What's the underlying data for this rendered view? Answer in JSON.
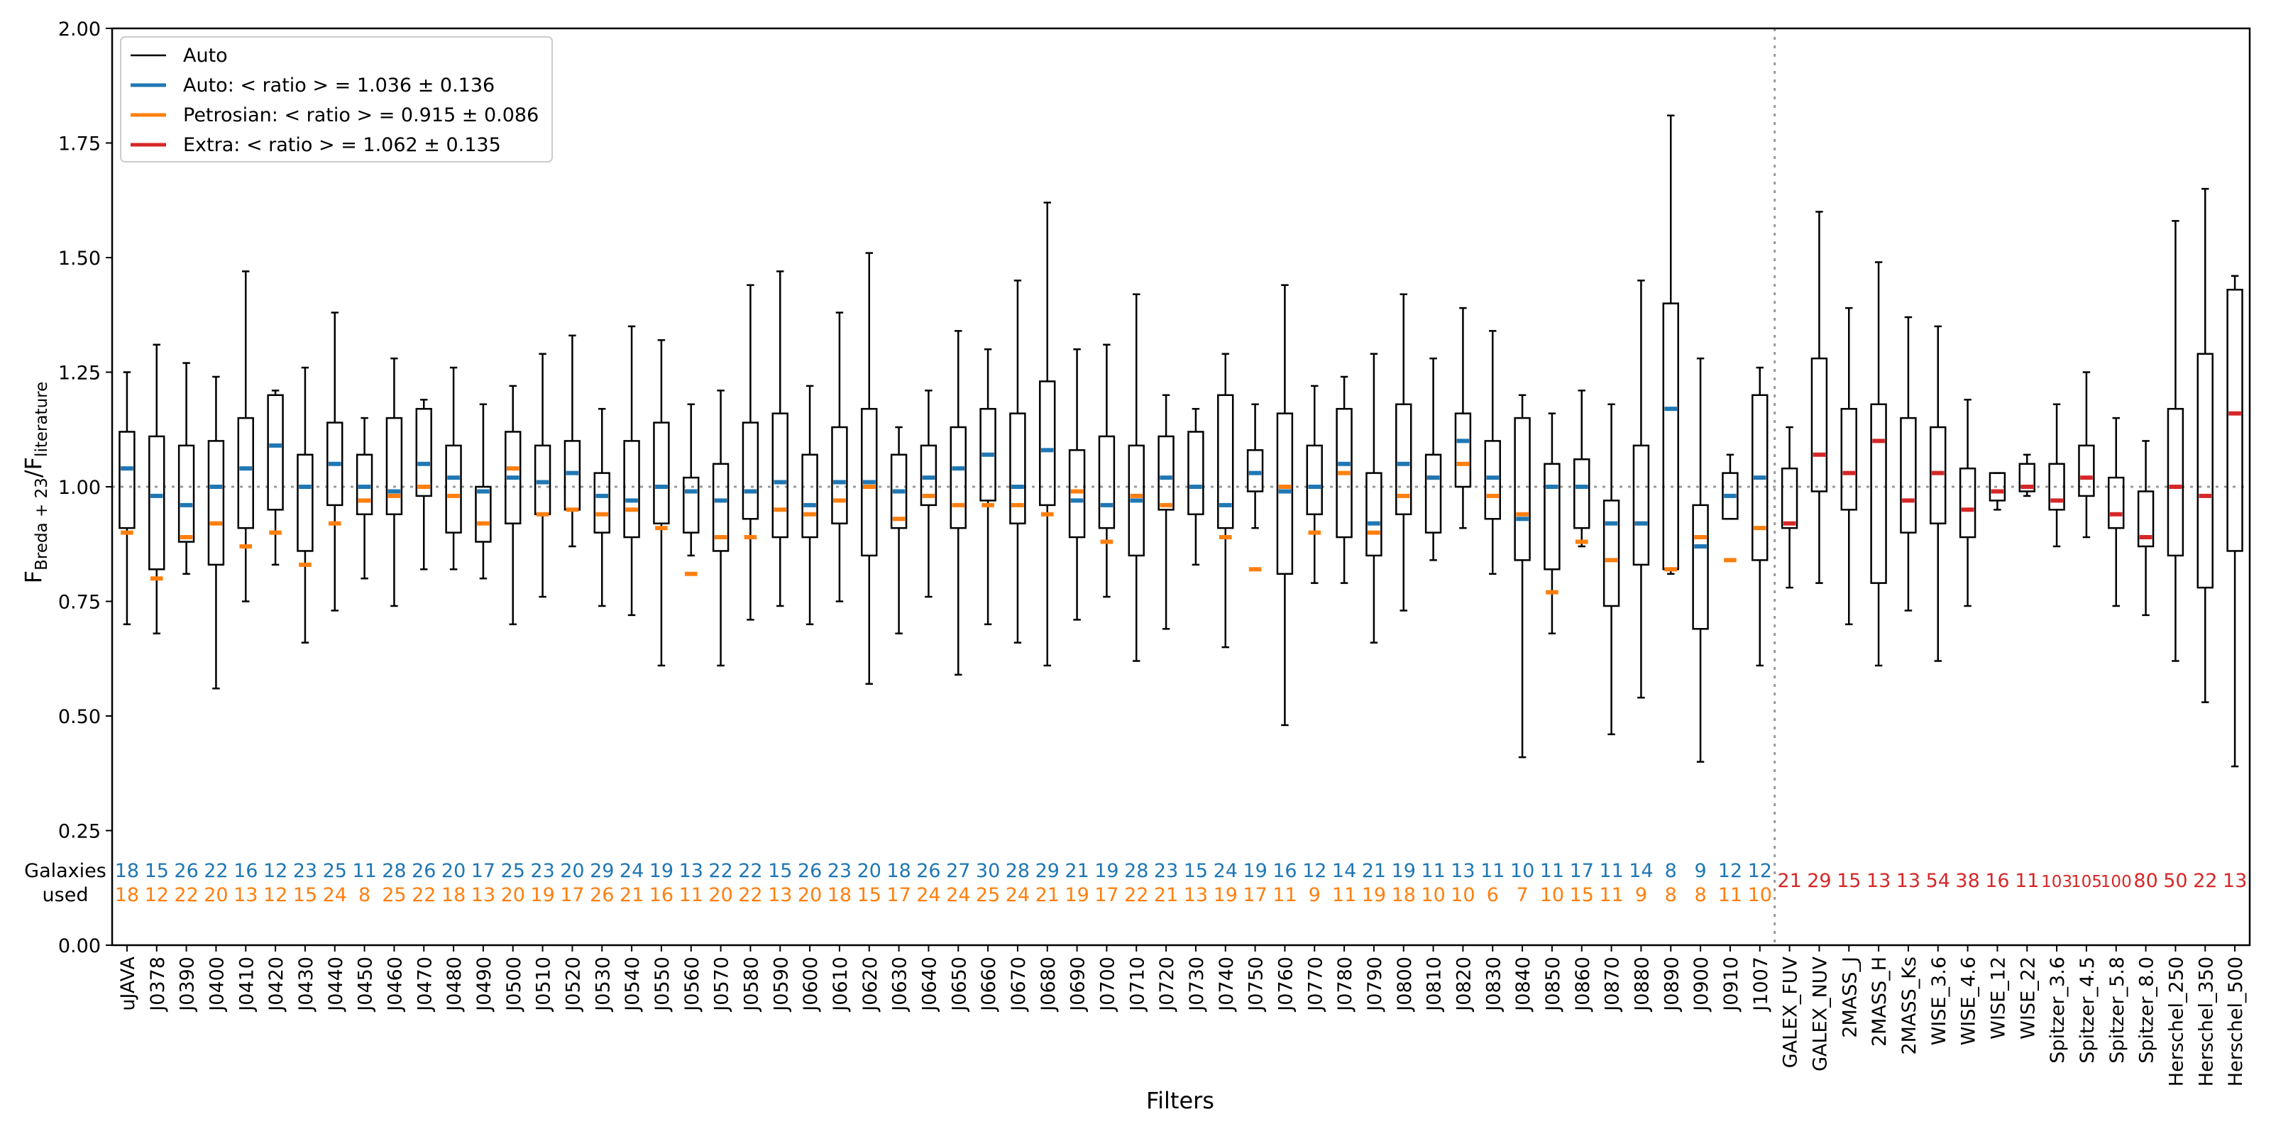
{
  "chart_data": {
    "type": "box",
    "xlabel": "Filters",
    "ylabel": "F_{Breda+23}/F_{literature}",
    "ylabel_main": "F",
    "ylabel_sub1": "Breda + 23",
    "ylabel_mid": "/F",
    "ylabel_sub2": "literature",
    "ylim": [
      0.0,
      2.0
    ],
    "yticks": [
      "0.00",
      "0.25",
      "0.50",
      "0.75",
      "1.00",
      "1.25",
      "1.50",
      "1.75",
      "2.00"
    ],
    "reference_line": 1.0,
    "split_after": "J1007",
    "galaxies_label_line1": "Galaxies",
    "galaxies_label_line2": "used",
    "colors": {
      "auto": "#1f77b4",
      "petrosian": "#ff7f0e",
      "extra": "#d62728",
      "box": "#000000",
      "ref": "#999999"
    },
    "legend": [
      {
        "key": "box",
        "label": "Auto",
        "color": "#000000"
      },
      {
        "key": "auto",
        "label": "Auto:  < ratio > = 1.036 ± 0.136",
        "color": "#1f77b4"
      },
      {
        "key": "petrosian",
        "label": "Petrosian:  < ratio > = 0.915 ± 0.086",
        "color": "#ff7f0e"
      },
      {
        "key": "extra",
        "label": "Extra: < ratio > = 1.062 ± 0.135",
        "color": "#d62728"
      }
    ],
    "filters": [
      {
        "name": "uJAVA",
        "min": 0.7,
        "q1": 0.91,
        "q3": 1.12,
        "max": 1.25,
        "auto": 1.04,
        "petro": 0.9,
        "n_auto": "18",
        "n_petro": "18"
      },
      {
        "name": "J0378",
        "min": 0.68,
        "q1": 0.82,
        "q3": 1.11,
        "max": 1.31,
        "auto": 0.98,
        "petro": 0.8,
        "n_auto": "15",
        "n_petro": "12"
      },
      {
        "name": "J0390",
        "min": 0.81,
        "q1": 0.88,
        "q3": 1.09,
        "max": 1.27,
        "auto": 0.96,
        "petro": 0.89,
        "n_auto": "26",
        "n_petro": "22"
      },
      {
        "name": "J0400",
        "min": 0.56,
        "q1": 0.83,
        "q3": 1.1,
        "max": 1.24,
        "auto": 1.0,
        "petro": 0.92,
        "n_auto": "22",
        "n_petro": "20"
      },
      {
        "name": "J0410",
        "min": 0.75,
        "q1": 0.91,
        "q3": 1.15,
        "max": 1.47,
        "auto": 1.04,
        "petro": 0.87,
        "n_auto": "16",
        "n_petro": "13"
      },
      {
        "name": "J0420",
        "min": 0.83,
        "q1": 0.95,
        "q3": 1.2,
        "max": 1.21,
        "auto": 1.09,
        "petro": 0.9,
        "n_auto": "12",
        "n_petro": "12"
      },
      {
        "name": "J0430",
        "min": 0.66,
        "q1": 0.86,
        "q3": 1.07,
        "max": 1.26,
        "auto": 1.0,
        "petro": 0.83,
        "n_auto": "23",
        "n_petro": "15"
      },
      {
        "name": "J0440",
        "min": 0.73,
        "q1": 0.96,
        "q3": 1.14,
        "max": 1.38,
        "auto": 1.05,
        "petro": 0.92,
        "n_auto": "25",
        "n_petro": "24"
      },
      {
        "name": "J0450",
        "min": 0.8,
        "q1": 0.94,
        "q3": 1.07,
        "max": 1.15,
        "auto": 1.0,
        "petro": 0.97,
        "n_auto": "11",
        "n_petro": "8"
      },
      {
        "name": "J0460",
        "min": 0.74,
        "q1": 0.94,
        "q3": 1.15,
        "max": 1.28,
        "auto": 0.99,
        "petro": 0.98,
        "n_auto": "28",
        "n_petro": "25"
      },
      {
        "name": "J0470",
        "min": 0.82,
        "q1": 0.98,
        "q3": 1.17,
        "max": 1.19,
        "auto": 1.05,
        "petro": 1.0,
        "n_auto": "26",
        "n_petro": "22"
      },
      {
        "name": "J0480",
        "min": 0.82,
        "q1": 0.9,
        "q3": 1.09,
        "max": 1.26,
        "auto": 1.02,
        "petro": 0.98,
        "n_auto": "20",
        "n_petro": "18"
      },
      {
        "name": "J0490",
        "min": 0.8,
        "q1": 0.88,
        "q3": 1.0,
        "max": 1.18,
        "auto": 0.99,
        "petro": 0.92,
        "n_auto": "17",
        "n_petro": "13"
      },
      {
        "name": "J0500",
        "min": 0.7,
        "q1": 0.92,
        "q3": 1.12,
        "max": 1.22,
        "auto": 1.02,
        "petro": 1.04,
        "n_auto": "25",
        "n_petro": "20"
      },
      {
        "name": "J0510",
        "min": 0.76,
        "q1": 0.94,
        "q3": 1.09,
        "max": 1.29,
        "auto": 1.01,
        "petro": 0.94,
        "n_auto": "23",
        "n_petro": "19"
      },
      {
        "name": "J0520",
        "min": 0.87,
        "q1": 0.95,
        "q3": 1.1,
        "max": 1.33,
        "auto": 1.03,
        "petro": 0.95,
        "n_auto": "20",
        "n_petro": "17"
      },
      {
        "name": "J0530",
        "min": 0.74,
        "q1": 0.9,
        "q3": 1.03,
        "max": 1.17,
        "auto": 0.98,
        "petro": 0.94,
        "n_auto": "29",
        "n_petro": "26"
      },
      {
        "name": "J0540",
        "min": 0.72,
        "q1": 0.89,
        "q3": 1.1,
        "max": 1.35,
        "auto": 0.97,
        "petro": 0.95,
        "n_auto": "24",
        "n_petro": "21"
      },
      {
        "name": "J0550",
        "min": 0.61,
        "q1": 0.92,
        "q3": 1.14,
        "max": 1.32,
        "auto": 1.0,
        "petro": 0.91,
        "n_auto": "19",
        "n_petro": "16"
      },
      {
        "name": "J0560",
        "min": 0.85,
        "q1": 0.9,
        "q3": 1.02,
        "max": 1.18,
        "auto": 0.99,
        "petro": 0.81,
        "n_auto": "13",
        "n_petro": "11"
      },
      {
        "name": "J0570",
        "min": 0.61,
        "q1": 0.86,
        "q3": 1.05,
        "max": 1.21,
        "auto": 0.97,
        "petro": 0.89,
        "n_auto": "22",
        "n_petro": "20"
      },
      {
        "name": "J0580",
        "min": 0.71,
        "q1": 0.93,
        "q3": 1.14,
        "max": 1.44,
        "auto": 0.99,
        "petro": 0.89,
        "n_auto": "22",
        "n_petro": "22"
      },
      {
        "name": "J0590",
        "min": 0.74,
        "q1": 0.89,
        "q3": 1.16,
        "max": 1.47,
        "auto": 1.01,
        "petro": 0.95,
        "n_auto": "15",
        "n_petro": "13"
      },
      {
        "name": "J0600",
        "min": 0.7,
        "q1": 0.89,
        "q3": 1.07,
        "max": 1.22,
        "auto": 0.96,
        "petro": 0.94,
        "n_auto": "26",
        "n_petro": "20"
      },
      {
        "name": "J0610",
        "min": 0.75,
        "q1": 0.92,
        "q3": 1.13,
        "max": 1.38,
        "auto": 1.01,
        "petro": 0.97,
        "n_auto": "23",
        "n_petro": "18"
      },
      {
        "name": "J0620",
        "min": 0.57,
        "q1": 0.85,
        "q3": 1.17,
        "max": 1.51,
        "auto": 1.01,
        "petro": 1.0,
        "n_auto": "20",
        "n_petro": "15"
      },
      {
        "name": "J0630",
        "min": 0.68,
        "q1": 0.91,
        "q3": 1.07,
        "max": 1.13,
        "auto": 0.99,
        "petro": 0.93,
        "n_auto": "18",
        "n_petro": "17"
      },
      {
        "name": "J0640",
        "min": 0.76,
        "q1": 0.96,
        "q3": 1.09,
        "max": 1.21,
        "auto": 1.02,
        "petro": 0.98,
        "n_auto": "26",
        "n_petro": "24"
      },
      {
        "name": "J0650",
        "min": 0.59,
        "q1": 0.91,
        "q3": 1.13,
        "max": 1.34,
        "auto": 1.04,
        "petro": 0.96,
        "n_auto": "27",
        "n_petro": "24"
      },
      {
        "name": "J0660",
        "min": 0.7,
        "q1": 0.97,
        "q3": 1.17,
        "max": 1.3,
        "auto": 1.07,
        "petro": 0.96,
        "n_auto": "30",
        "n_petro": "25"
      },
      {
        "name": "J0670",
        "min": 0.66,
        "q1": 0.92,
        "q3": 1.16,
        "max": 1.45,
        "auto": 1.0,
        "petro": 0.96,
        "n_auto": "28",
        "n_petro": "24"
      },
      {
        "name": "J0680",
        "min": 0.61,
        "q1": 0.96,
        "q3": 1.23,
        "max": 1.62,
        "auto": 1.08,
        "petro": 0.94,
        "n_auto": "29",
        "n_petro": "21"
      },
      {
        "name": "J0690",
        "min": 0.71,
        "q1": 0.89,
        "q3": 1.08,
        "max": 1.3,
        "auto": 0.97,
        "petro": 0.99,
        "n_auto": "21",
        "n_petro": "19"
      },
      {
        "name": "J0700",
        "min": 0.76,
        "q1": 0.91,
        "q3": 1.11,
        "max": 1.31,
        "auto": 0.96,
        "petro": 0.88,
        "n_auto": "19",
        "n_petro": "17"
      },
      {
        "name": "J0710",
        "min": 0.62,
        "q1": 0.85,
        "q3": 1.09,
        "max": 1.42,
        "auto": 0.97,
        "petro": 0.98,
        "n_auto": "28",
        "n_petro": "22"
      },
      {
        "name": "J0720",
        "min": 0.69,
        "q1": 0.95,
        "q3": 1.11,
        "max": 1.2,
        "auto": 1.02,
        "petro": 0.96,
        "n_auto": "23",
        "n_petro": "21"
      },
      {
        "name": "J0730",
        "min": 0.83,
        "q1": 0.94,
        "q3": 1.12,
        "max": 1.17,
        "auto": 1.0,
        "petro": 1.0,
        "n_auto": "15",
        "n_petro": "13"
      },
      {
        "name": "J0740",
        "min": 0.65,
        "q1": 0.91,
        "q3": 1.2,
        "max": 1.29,
        "auto": 0.96,
        "petro": 0.89,
        "n_auto": "24",
        "n_petro": "19"
      },
      {
        "name": "J0750",
        "min": 0.91,
        "q1": 0.99,
        "q3": 1.08,
        "max": 1.18,
        "auto": 1.03,
        "petro": 0.82,
        "n_auto": "19",
        "n_petro": "17"
      },
      {
        "name": "J0760",
        "min": 0.48,
        "q1": 0.81,
        "q3": 1.16,
        "max": 1.44,
        "auto": 0.99,
        "petro": 1.0,
        "n_auto": "16",
        "n_petro": "11"
      },
      {
        "name": "J0770",
        "min": 0.79,
        "q1": 0.94,
        "q3": 1.09,
        "max": 1.22,
        "auto": 1.0,
        "petro": 0.9,
        "n_auto": "12",
        "n_petro": "9"
      },
      {
        "name": "J0780",
        "min": 0.79,
        "q1": 0.89,
        "q3": 1.17,
        "max": 1.24,
        "auto": 1.05,
        "petro": 1.03,
        "n_auto": "14",
        "n_petro": "11"
      },
      {
        "name": "J0790",
        "min": 0.66,
        "q1": 0.85,
        "q3": 1.03,
        "max": 1.29,
        "auto": 0.92,
        "petro": 0.9,
        "n_auto": "21",
        "n_petro": "19"
      },
      {
        "name": "J0800",
        "min": 0.73,
        "q1": 0.94,
        "q3": 1.18,
        "max": 1.42,
        "auto": 1.05,
        "petro": 0.98,
        "n_auto": "19",
        "n_petro": "18"
      },
      {
        "name": "J0810",
        "min": 0.84,
        "q1": 0.9,
        "q3": 1.07,
        "max": 1.28,
        "auto": 1.02,
        "petro": 1.02,
        "n_auto": "11",
        "n_petro": "10"
      },
      {
        "name": "J0820",
        "min": 0.91,
        "q1": 1.0,
        "q3": 1.16,
        "max": 1.39,
        "auto": 1.1,
        "petro": 1.05,
        "n_auto": "13",
        "n_petro": "10"
      },
      {
        "name": "J0830",
        "min": 0.81,
        "q1": 0.93,
        "q3": 1.1,
        "max": 1.34,
        "auto": 1.02,
        "petro": 0.98,
        "n_auto": "11",
        "n_petro": "6"
      },
      {
        "name": "J0840",
        "min": 0.41,
        "q1": 0.84,
        "q3": 1.15,
        "max": 1.2,
        "auto": 0.93,
        "petro": 0.94,
        "n_auto": "10",
        "n_petro": "7"
      },
      {
        "name": "J0850",
        "min": 0.68,
        "q1": 0.82,
        "q3": 1.05,
        "max": 1.16,
        "auto": 1.0,
        "petro": 0.77,
        "n_auto": "11",
        "n_petro": "10"
      },
      {
        "name": "J0860",
        "min": 0.87,
        "q1": 0.91,
        "q3": 1.06,
        "max": 1.21,
        "auto": 1.0,
        "petro": 0.88,
        "n_auto": "17",
        "n_petro": "15"
      },
      {
        "name": "J0870",
        "min": 0.46,
        "q1": 0.74,
        "q3": 0.97,
        "max": 1.18,
        "auto": 0.92,
        "petro": 0.84,
        "n_auto": "11",
        "n_petro": "11"
      },
      {
        "name": "J0880",
        "min": 0.54,
        "q1": 0.83,
        "q3": 1.09,
        "max": 1.45,
        "auto": 0.92,
        "petro": 0.92,
        "n_auto": "14",
        "n_petro": "9"
      },
      {
        "name": "J0890",
        "min": 0.81,
        "q1": 0.82,
        "q3": 1.4,
        "max": 1.81,
        "auto": 1.17,
        "petro": 0.82,
        "n_auto": "8",
        "n_petro": "8"
      },
      {
        "name": "J0900",
        "min": 0.4,
        "q1": 0.69,
        "q3": 0.96,
        "max": 1.28,
        "auto": 0.87,
        "petro": 0.89,
        "n_auto": "9",
        "n_petro": "8"
      },
      {
        "name": "J0910",
        "min": 0.93,
        "q1": 0.93,
        "q3": 1.03,
        "max": 1.07,
        "auto": 0.98,
        "petro": 0.84,
        "n_auto": "12",
        "n_petro": "11"
      },
      {
        "name": "J1007",
        "min": 0.61,
        "q1": 0.84,
        "q3": 1.2,
        "max": 1.26,
        "auto": 1.02,
        "petro": 0.91,
        "n_auto": "12",
        "n_petro": "10"
      },
      {
        "name": "GALEX_FUV",
        "min": 0.78,
        "q1": 0.91,
        "q3": 1.04,
        "max": 1.13,
        "extra": 0.92,
        "n_extra": "21"
      },
      {
        "name": "GALEX_NUV",
        "min": 0.79,
        "q1": 0.99,
        "q3": 1.28,
        "max": 1.6,
        "extra": 1.07,
        "n_extra": "29"
      },
      {
        "name": "2MASS_J",
        "min": 0.7,
        "q1": 0.95,
        "q3": 1.17,
        "max": 1.39,
        "extra": 1.03,
        "n_extra": "15"
      },
      {
        "name": "2MASS_H",
        "min": 0.61,
        "q1": 0.79,
        "q3": 1.18,
        "max": 1.49,
        "extra": 1.1,
        "n_extra": "13"
      },
      {
        "name": "2MASS_Ks",
        "min": 0.73,
        "q1": 0.9,
        "q3": 1.15,
        "max": 1.37,
        "extra": 0.97,
        "n_extra": "13"
      },
      {
        "name": "WISE_3.6",
        "min": 0.62,
        "q1": 0.92,
        "q3": 1.13,
        "max": 1.35,
        "extra": 1.03,
        "n_extra": "54"
      },
      {
        "name": "WISE_4.6",
        "min": 0.74,
        "q1": 0.89,
        "q3": 1.04,
        "max": 1.19,
        "extra": 0.95,
        "n_extra": "38"
      },
      {
        "name": "WISE_12",
        "min": 0.95,
        "q1": 0.97,
        "q3": 1.03,
        "max": 1.03,
        "extra": 0.99,
        "n_extra": "16"
      },
      {
        "name": "WISE_22",
        "min": 0.98,
        "q1": 0.99,
        "q3": 1.05,
        "max": 1.07,
        "extra": 1.0,
        "n_extra": "11"
      },
      {
        "name": "Spitzer_3.6",
        "min": 0.87,
        "q1": 0.95,
        "q3": 1.05,
        "max": 1.18,
        "extra": 0.97,
        "n_extra": "103"
      },
      {
        "name": "Spitzer_4.5",
        "min": 0.89,
        "q1": 0.98,
        "q3": 1.09,
        "max": 1.25,
        "extra": 1.02,
        "n_extra": "105"
      },
      {
        "name": "Spitzer_5.8",
        "min": 0.74,
        "q1": 0.91,
        "q3": 1.02,
        "max": 1.15,
        "extra": 0.94,
        "n_extra": "100"
      },
      {
        "name": "Spitzer_8.0",
        "min": 0.72,
        "q1": 0.87,
        "q3": 0.99,
        "max": 1.1,
        "extra": 0.89,
        "n_extra": "80"
      },
      {
        "name": "Herschel_250",
        "min": 0.62,
        "q1": 0.85,
        "q3": 1.17,
        "max": 1.58,
        "extra": 1.0,
        "n_extra": "50"
      },
      {
        "name": "Herschel_350",
        "min": 0.53,
        "q1": 0.78,
        "q3": 1.29,
        "max": 1.65,
        "extra": 0.98,
        "n_extra": "22"
      },
      {
        "name": "Herschel_500",
        "min": 0.39,
        "q1": 0.86,
        "q3": 1.43,
        "max": 1.46,
        "extra": 1.16,
        "n_extra": "13"
      }
    ]
  }
}
